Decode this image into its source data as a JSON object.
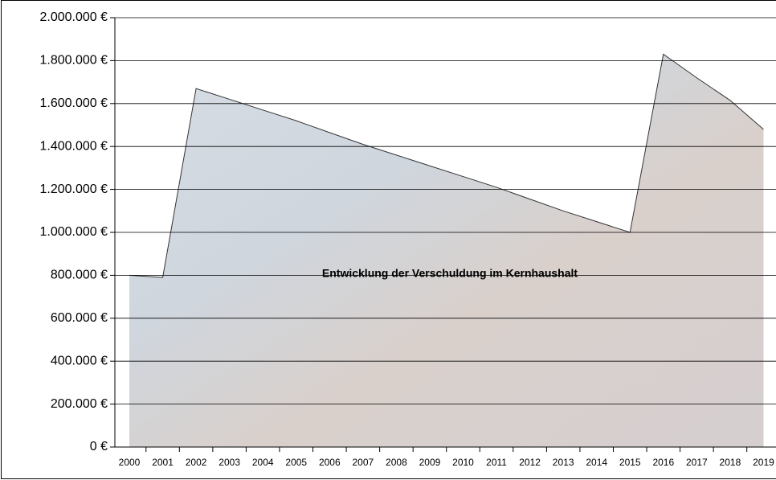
{
  "chart_data": {
    "type": "area",
    "title": "Entwicklung der Verschuldung im Kernhaushalt",
    "categories": [
      "2000",
      "2001",
      "2002",
      "2003",
      "2004",
      "2005",
      "2006",
      "2007",
      "2008",
      "2009",
      "2010",
      "2011",
      "2012",
      "2013",
      "2014",
      "2015",
      "2016",
      "2017",
      "2018",
      "2019"
    ],
    "values": [
      800000,
      790000,
      1670000,
      1620000,
      1570000,
      1520000,
      1465000,
      1410000,
      1360000,
      1310000,
      1260000,
      1210000,
      1155000,
      1100000,
      1050000,
      1000000,
      1830000,
      1720000,
      1615000,
      1480000
    ],
    "color": "#c9d2dc",
    "ylim": [
      0,
      2000000
    ],
    "yticks": [
      {
        "value": 0,
        "label": "0 €"
      },
      {
        "value": 200000,
        "label": "200.000 €"
      },
      {
        "value": 400000,
        "label": "400.000 €"
      },
      {
        "value": 600000,
        "label": "600.000 €"
      },
      {
        "value": 800000,
        "label": "800.000 €"
      },
      {
        "value": 1000000,
        "label": "1.000.000 €"
      },
      {
        "value": 1200000,
        "label": "1.200.000 €"
      },
      {
        "value": 1400000,
        "label": "1.400.000 €"
      },
      {
        "value": 1600000,
        "label": "1.600.000 €"
      },
      {
        "value": 1800000,
        "label": "1.800.000 €"
      },
      {
        "value": 2000000,
        "label": "2.000.000 €"
      }
    ],
    "grid": true
  }
}
